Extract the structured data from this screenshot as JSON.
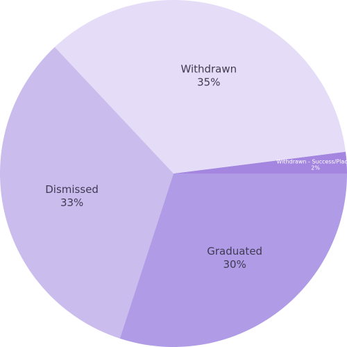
{
  "chart_data": {
    "type": "pie",
    "start_angle_deg": 0,
    "direction": "counterclockwise",
    "slices": [
      {
        "label": "Withdrawn - Success/Placed",
        "value": 2,
        "pct_label": "2%",
        "color": "#a486e0"
      },
      {
        "label": "Withdrawn",
        "value": 35,
        "pct_label": "35%",
        "color": "#e5ddf7"
      },
      {
        "label": "Dismissed",
        "value": 33,
        "pct_label": "33%",
        "color": "#cbbcee"
      },
      {
        "label": "Graduated",
        "value": 30,
        "pct_label": "30%",
        "color": "#b09be6"
      }
    ]
  }
}
